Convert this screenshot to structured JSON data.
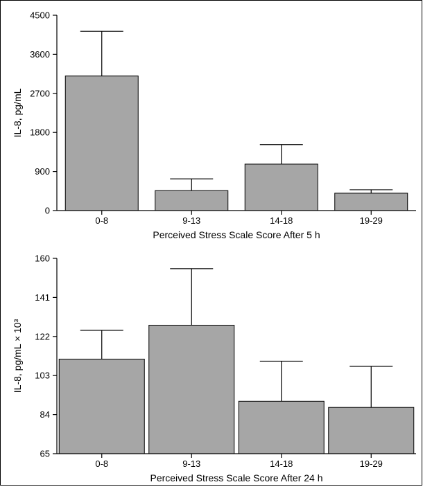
{
  "chart_data": [
    {
      "type": "bar",
      "categories": [
        "0-8",
        "9-13",
        "14-18",
        "19-29"
      ],
      "values": [
        3100,
        460,
        1070,
        400
      ],
      "error_upper": [
        4130,
        730,
        1520,
        480
      ],
      "xlabel": "Perceived Stress Scale Score After 5 h",
      "ylabel": "IL-8, pg/mL",
      "ylim": [
        0,
        4500
      ],
      "yticks": [
        "0",
        "900",
        "1800",
        "2700",
        "3600",
        "4500"
      ],
      "grid": false
    },
    {
      "type": "bar",
      "categories": [
        "0-8",
        "9-13",
        "14-18",
        "19-29"
      ],
      "values": [
        111,
        127.5,
        90.5,
        87.5
      ],
      "error_upper": [
        125,
        155,
        110,
        107.5
      ],
      "xlabel": "Perceived Stress Scale Score After 24 h",
      "ylabel": "IL-8, pg/mL × 10³",
      "ylim": [
        65,
        160
      ],
      "yticks": [
        "65",
        "84",
        "103",
        "122",
        "141",
        "160"
      ],
      "grid": false
    }
  ]
}
